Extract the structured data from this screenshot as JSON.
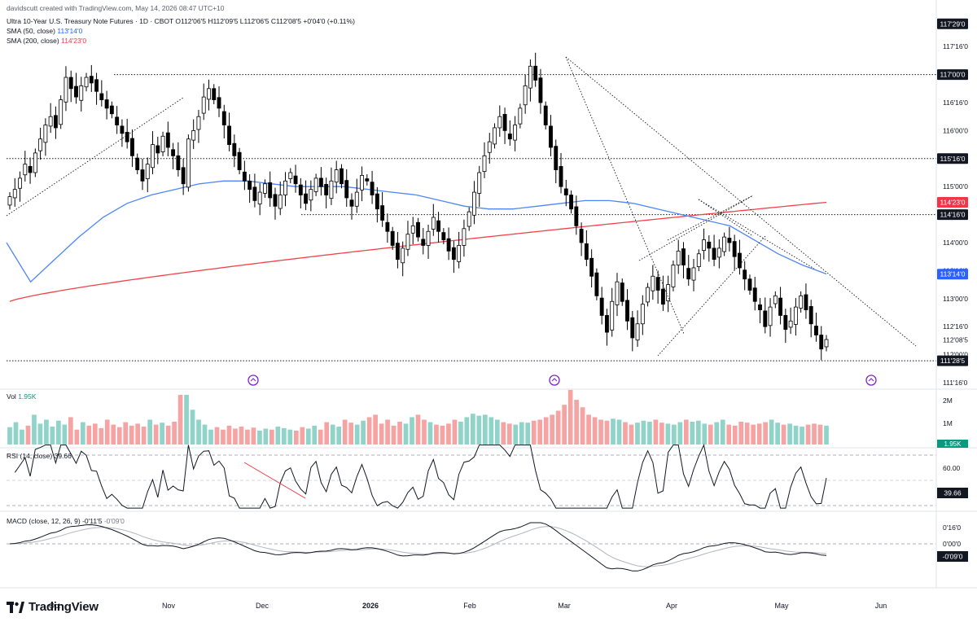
{
  "header": {
    "credit": "davidscutt created with TradingView.com, May 14, 2026 08:47 UTC+10",
    "symbol_line": "Ultra 10-Year U.S. Treasury Note Futures · 1D · CBOT  O112'06'5  H112'09'5  L112'06'5  C112'08'5  +0'04'0 (+0.11%)",
    "sma50_label": "SMA (50, close)",
    "sma50_value": "113'14'0",
    "sma200_label": "SMA (200, close)",
    "sma200_value": "114'23'0"
  },
  "volume_panel": {
    "label": "Vol",
    "value": "1.95K"
  },
  "rsi_panel": {
    "label": "RSI (14, close)",
    "value": "39.66"
  },
  "macd_panel": {
    "label": "MACD (close, 12, 26, 9)",
    "value1": "-0'11'5",
    "value2": "-0'09'0"
  },
  "brand": {
    "name": "TradingView"
  },
  "colors": {
    "up": "#ffffff",
    "down": "#000000",
    "vol_up": "#8fd3c9",
    "vol_down": "#f5a3a3",
    "sma50": "#4f86f7",
    "sma200": "#f0424a",
    "grid": "#e0e3eb"
  },
  "chart_data": [
    {
      "type": "candlestick",
      "title": "Ultra 10-Year U.S. Treasury Note Futures",
      "price_axis_ticks": [
        "117'16'0",
        "117'00'0",
        "116'16'0",
        "116'00'0",
        "115'16'0",
        "115'00'0",
        "114'16'0",
        "114'00'0",
        "113'16'0",
        "113'00'0",
        "112'16'0",
        "112'08'5",
        "112'00'0",
        "111'16'0"
      ],
      "price_axis_badges": [
        {
          "label": "117'29'0",
          "value": 117.906,
          "style": "dark"
        },
        {
          "label": "117'00'0",
          "value": 117.0,
          "style": "dark"
        },
        {
          "label": "115'16'0",
          "value": 115.5,
          "style": "dark"
        },
        {
          "label": "114'23'0",
          "value": 114.719,
          "style": "red"
        },
        {
          "label": "114'16'0",
          "value": 114.5,
          "style": "dark"
        },
        {
          "label": "113'14'0",
          "value": 113.4375,
          "style": "blue"
        },
        {
          "label": "111'28'5",
          "value": 111.89,
          "style": "dark"
        }
      ],
      "x_axis_labels": [
        "Oct",
        "Nov",
        "Dec",
        "2026",
        "Feb",
        "Mar",
        "Apr",
        "May",
        "Jun"
      ],
      "candle_closes": [
        114.82,
        114.95,
        115.15,
        115.4,
        115.25,
        115.6,
        115.85,
        116.1,
        116.25,
        116.05,
        116.55,
        116.95,
        116.75,
        116.6,
        116.8,
        116.95,
        116.85,
        116.7,
        116.55,
        116.4,
        116.3,
        116.1,
        115.95,
        115.8,
        115.55,
        115.3,
        115.1,
        115.4,
        115.75,
        115.6,
        115.9,
        115.7,
        115.55,
        115.3,
        115.05,
        115.85,
        116.0,
        116.25,
        116.6,
        116.75,
        116.55,
        116.4,
        116.1,
        115.75,
        115.55,
        115.3,
        115.1,
        114.95,
        114.75,
        114.9,
        115.05,
        114.8,
        114.65,
        114.85,
        115.1,
        115.25,
        115.05,
        114.85,
        114.7,
        114.95,
        115.15,
        115.0,
        114.85,
        115.1,
        115.3,
        115.05,
        114.8,
        114.65,
        114.9,
        115.2,
        115.1,
        114.85,
        114.6,
        114.4,
        114.2,
        113.95,
        113.7,
        113.9,
        114.15,
        114.3,
        114.1,
        113.95,
        114.2,
        114.45,
        114.2,
        114.05,
        113.85,
        113.7,
        113.95,
        114.25,
        114.55,
        114.9,
        115.25,
        115.55,
        115.8,
        116.05,
        116.25,
        116.0,
        115.85,
        116.1,
        116.4,
        116.8,
        117.15,
        116.9,
        116.5,
        116.1,
        115.7,
        115.3,
        115.0,
        114.85,
        114.6,
        114.3,
        114.0,
        113.7,
        113.4,
        113.05,
        112.7,
        112.4,
        112.95,
        113.3,
        112.95,
        112.6,
        112.3,
        112.55,
        112.9,
        113.2,
        113.4,
        113.15,
        112.9,
        113.25,
        113.6,
        113.85,
        113.6,
        113.35,
        113.55,
        113.8,
        114.05,
        113.9,
        113.7,
        113.9,
        114.1,
        114.0,
        113.75,
        113.55,
        113.35,
        113.15,
        112.95,
        112.8,
        112.5,
        112.85,
        113.05,
        112.7,
        112.45,
        112.6,
        112.85,
        113.05,
        112.8,
        112.55,
        112.35,
        112.1,
        112.27
      ],
      "sma_50": {
        "start": 114.0,
        "points": [
          113.3,
          113.7,
          114.1,
          114.45,
          114.7,
          114.85,
          114.95,
          115.05,
          115.1,
          115.1,
          115.05,
          115.0,
          115.0,
          115.0,
          114.95,
          114.9,
          114.85,
          114.75,
          114.65,
          114.6,
          114.6,
          114.65,
          114.7,
          114.75,
          114.75,
          114.7,
          114.6,
          114.5,
          114.4,
          114.3,
          114.05,
          113.8,
          113.6,
          113.44
        ]
      },
      "sma_200": {
        "start": 112.95,
        "end": 114.72
      },
      "volume": {
        "axis_ticks": [
          "2M",
          "1M"
        ],
        "values_rel": [
          0.35,
          0.45,
          0.3,
          0.38,
          0.6,
          0.42,
          0.5,
          0.36,
          0.48,
          0.4,
          0.55,
          0.3,
          0.45,
          0.38,
          0.42,
          0.33,
          0.5,
          0.4,
          0.35,
          0.45,
          0.38,
          0.42,
          0.36,
          0.5,
          0.4,
          0.44,
          0.38,
          0.46,
          1.0,
          1.0,
          0.7,
          0.5,
          0.4,
          0.3,
          0.35,
          0.3,
          0.38,
          0.32,
          0.36,
          0.3,
          0.34,
          0.28,
          0.32,
          0.3,
          0.36,
          0.33,
          0.3,
          0.28,
          0.35,
          0.32,
          0.38,
          0.3,
          0.45,
          0.4,
          0.36,
          0.5,
          0.44,
          0.4,
          0.48,
          0.55,
          0.6,
          0.42,
          0.5,
          0.38,
          0.46,
          0.42,
          0.55,
          0.6,
          0.5,
          0.45,
          0.4,
          0.38,
          0.42,
          0.5,
          0.46,
          0.55,
          0.62,
          0.58,
          0.6,
          0.55,
          0.5,
          0.45,
          0.42,
          0.4,
          0.45,
          0.44,
          0.48,
          0.5,
          0.55,
          0.6,
          0.68,
          0.8,
          1.1,
          0.9,
          0.75,
          0.6,
          0.55,
          0.5,
          0.48,
          0.52,
          0.5,
          0.45,
          0.4,
          0.44,
          0.48,
          0.46,
          0.5,
          0.44,
          0.42,
          0.4,
          0.45,
          0.5,
          0.46,
          0.48,
          0.42,
          0.4,
          0.45,
          0.5,
          0.4,
          0.38,
          0.46,
          0.44,
          0.4,
          0.42,
          0.45,
          0.5,
          0.44,
          0.4,
          0.42,
          0.38,
          0.36,
          0.4,
          0.42,
          0.4,
          0.38
        ]
      },
      "rsi": {
        "axis_ticks": [
          "60.00"
        ],
        "value": 39.66
      },
      "macd": {
        "axis_ticks": [
          "0'16'0",
          "0'00'0"
        ],
        "value": "-0'09'0"
      }
    }
  ]
}
